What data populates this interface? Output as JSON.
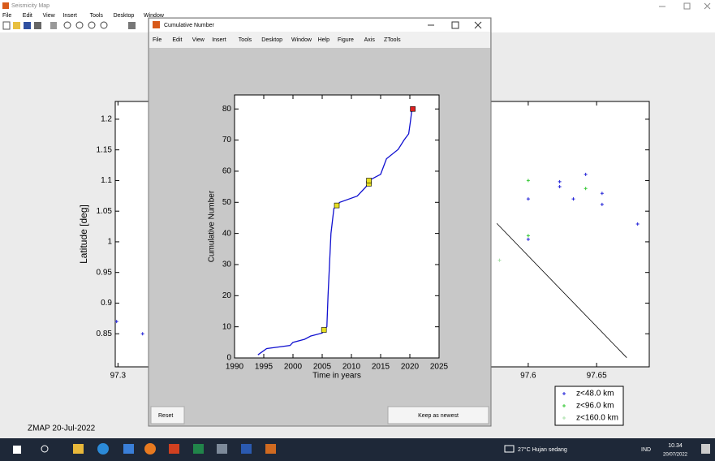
{
  "main_window": {
    "title": "Seismicity Map",
    "menu": [
      "File",
      "Edit",
      "View",
      "Insert",
      "Tools",
      "Desktop",
      "Window"
    ],
    "footer": "ZMAP 20-Jul-2022",
    "map": {
      "type": "scatter",
      "ylabel": "Latitude [deg]",
      "xlim": [
        97.298,
        97.6885
      ],
      "ylim": [
        0.796,
        1.229
      ],
      "xticks": [
        97.3,
        97.6,
        97.65
      ],
      "yticks": [
        0.85,
        0.9,
        0.95,
        1,
        1.05,
        1.1,
        1.15,
        1.2
      ],
      "legend": "lower right",
      "series": [
        {
          "name": "z<48.0 km",
          "color": "#2323d8",
          "x": [
            97.299,
            97.318,
            97.6,
            97.6,
            97.623,
            97.623,
            97.633,
            97.642,
            97.654,
            97.654,
            97.68
          ],
          "y": [
            0.87,
            0.85,
            1.07,
            1.004,
            1.098,
            1.09,
            1.07,
            1.11,
            1.079,
            1.061,
            1.029
          ]
        },
        {
          "name": "z<96.0 km",
          "color": "#35c935",
          "x": [
            97.6,
            97.6,
            97.642
          ],
          "y": [
            1.1,
            1.01,
            1.087
          ]
        },
        {
          "name": "z<160.0 km",
          "color": "#a8e0a8",
          "x": [
            97.579
          ],
          "y": [
            0.97
          ]
        }
      ],
      "fault": {
        "color": "#000000",
        "x": [
          97.577,
          97.672
        ],
        "y": [
          1.03,
          0.811
        ]
      }
    }
  },
  "popup_window": {
    "title": "Cumulative Number",
    "menu": [
      "File",
      "Edit",
      "View",
      "Insert",
      "Tools",
      "Desktop",
      "Window",
      "Help",
      "Figure",
      "Axis",
      "ZTools"
    ],
    "buttons": [
      "Reset",
      "Keep as newest"
    ],
    "chart": {
      "type": "line",
      "xlabel": "Time in years",
      "ylabel": "Cumulative Number",
      "xlim": [
        1990,
        2025
      ],
      "ylim": [
        0,
        84.5
      ],
      "xticks": [
        1990,
        1995,
        2000,
        2005,
        2010,
        2015,
        2020,
        2025
      ],
      "yticks": [
        0,
        10,
        20,
        30,
        40,
        50,
        60,
        70,
        80
      ],
      "series": [
        {
          "color": "#1010d0",
          "x": [
            1994,
            1995.5,
            1999.5,
            2000,
            2002,
            2003,
            2005,
            2005.3,
            2005.8,
            2006,
            2006.5,
            2007,
            2007.5,
            2008,
            2011,
            2012.5,
            2013,
            2014,
            2015,
            2016,
            2018,
            2019,
            2019.8,
            2020.1,
            2020.3,
            2020.5
          ],
          "y": [
            1,
            3,
            4,
            5,
            6,
            7,
            8,
            9,
            10,
            20,
            40,
            48,
            49,
            50,
            52,
            55,
            57,
            58,
            59,
            64,
            67,
            70,
            72,
            76,
            79,
            80
          ]
        }
      ],
      "markers": [
        {
          "color": "#e8e020",
          "x": [
            2005.3,
            2007.5,
            2013,
            2013
          ],
          "y": [
            9,
            49,
            56,
            57
          ]
        },
        {
          "color": "#e02020",
          "x": [
            2020.5
          ],
          "y": [
            80
          ]
        }
      ]
    }
  },
  "taskbar": {
    "weather": "27°C  Hujan sedang",
    "language": "IND",
    "time": "10.34",
    "date": "20/07/2022"
  }
}
